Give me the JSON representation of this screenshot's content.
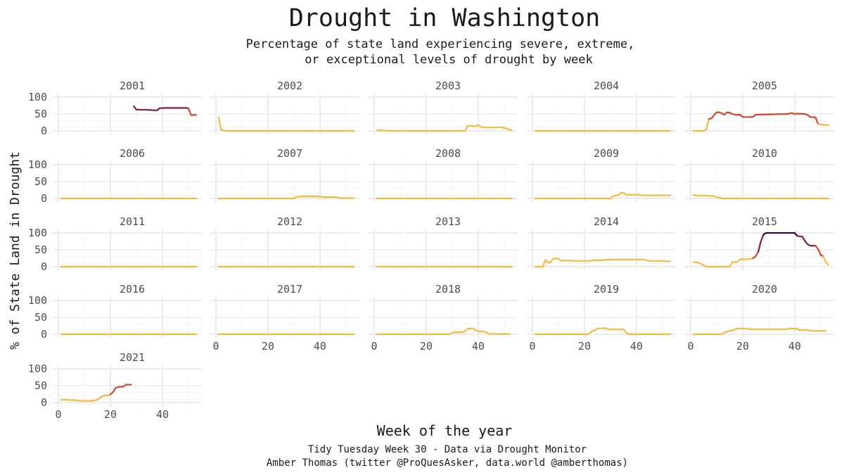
{
  "title": "Drought in Washington",
  "subtitle_line1": "Percentage of state land experiencing severe, extreme,",
  "subtitle_line2": "or exceptional levels of drought by week",
  "caption_line1": "Tidy Tuesday Week 30 - Data via Drought Monitor",
  "caption_line2": "Amber Thomas (twitter @ProQuesAsker, data.world @amberthomas)",
  "colors": {
    "low": "#f5b942",
    "mid": "#d6452e",
    "high": "#7a1e3c",
    "max": "#2a0b3a",
    "grid": "#ebebeb",
    "text": "#4d4d4d"
  },
  "chart_data": {
    "type": "line",
    "xlabel": "Week of the year",
    "ylabel": "% of State Land in Drought",
    "xlim": [
      0,
      53
    ],
    "ylim": [
      0,
      100
    ],
    "x_ticks": [
      0,
      20,
      40
    ],
    "y_ticks": [
      0,
      50,
      100
    ],
    "layout": "facet_wrap by year, 5 columns",
    "color_scale": "sequential: yellow (low) to red to dark purple (high)",
    "panels": [
      {
        "year": "2001",
        "points": [
          [
            29,
            73
          ],
          [
            30,
            63
          ],
          [
            31,
            63
          ],
          [
            35,
            62
          ],
          [
            37,
            61
          ],
          [
            38,
            61
          ],
          [
            39,
            67
          ],
          [
            41,
            68
          ],
          [
            46,
            68
          ],
          [
            49,
            68
          ],
          [
            50,
            67
          ],
          [
            51,
            47
          ],
          [
            53,
            47
          ]
        ]
      },
      {
        "year": "2002",
        "points": [
          [
            1,
            40
          ],
          [
            2,
            3
          ],
          [
            3,
            1
          ],
          [
            6,
            0
          ],
          [
            53,
            0
          ]
        ]
      },
      {
        "year": "2003",
        "points": [
          [
            1,
            1
          ],
          [
            2,
            2
          ],
          [
            4,
            1
          ],
          [
            6,
            0
          ],
          [
            35,
            0
          ],
          [
            36,
            15
          ],
          [
            37,
            15
          ],
          [
            38,
            14
          ],
          [
            39,
            14
          ],
          [
            40,
            17
          ],
          [
            41,
            12
          ],
          [
            42,
            10
          ],
          [
            46,
            10
          ],
          [
            49,
            11
          ],
          [
            51,
            6
          ],
          [
            53,
            1
          ]
        ]
      },
      {
        "year": "2004",
        "points": [
          [
            1,
            0
          ],
          [
            53,
            0
          ]
        ]
      },
      {
        "year": "2005",
        "points": [
          [
            1,
            0
          ],
          [
            5,
            0
          ],
          [
            6,
            5
          ],
          [
            7,
            35
          ],
          [
            8,
            37
          ],
          [
            9,
            47
          ],
          [
            10,
            55
          ],
          [
            11,
            55
          ],
          [
            12,
            52
          ],
          [
            13,
            48
          ],
          [
            14,
            55
          ],
          [
            15,
            54
          ],
          [
            16,
            50
          ],
          [
            17,
            48
          ],
          [
            19,
            48
          ],
          [
            20,
            41
          ],
          [
            23,
            41
          ],
          [
            24,
            42
          ],
          [
            25,
            48
          ],
          [
            37,
            50
          ],
          [
            39,
            53
          ],
          [
            40,
            50
          ],
          [
            41,
            51
          ],
          [
            44,
            50
          ],
          [
            45,
            47
          ],
          [
            46,
            41
          ],
          [
            48,
            40
          ],
          [
            49,
            20
          ],
          [
            53,
            17
          ]
        ]
      },
      {
        "year": "2006",
        "points": [
          [
            1,
            0
          ],
          [
            53,
            0
          ]
        ]
      },
      {
        "year": "2007",
        "points": [
          [
            1,
            0
          ],
          [
            30,
            0
          ],
          [
            31,
            5
          ],
          [
            33,
            6
          ],
          [
            40,
            6
          ],
          [
            41,
            4
          ],
          [
            46,
            4
          ],
          [
            48,
            1
          ],
          [
            53,
            1
          ]
        ]
      },
      {
        "year": "2008",
        "points": [
          [
            1,
            0
          ],
          [
            53,
            0
          ]
        ]
      },
      {
        "year": "2009",
        "points": [
          [
            1,
            0
          ],
          [
            30,
            0
          ],
          [
            31,
            7
          ],
          [
            33,
            10
          ],
          [
            34,
            17
          ],
          [
            35,
            16
          ],
          [
            36,
            11
          ],
          [
            41,
            11
          ],
          [
            42,
            9
          ],
          [
            53,
            9
          ]
        ]
      },
      {
        "year": "2010",
        "points": [
          [
            1,
            10
          ],
          [
            2,
            9
          ],
          [
            5,
            8
          ],
          [
            9,
            7
          ],
          [
            10,
            4
          ],
          [
            11,
            3
          ],
          [
            12,
            0
          ],
          [
            53,
            0
          ]
        ]
      },
      {
        "year": "2011",
        "points": [
          [
            1,
            0
          ],
          [
            53,
            0
          ]
        ]
      },
      {
        "year": "2012",
        "points": [
          [
            1,
            0
          ],
          [
            53,
            0
          ]
        ]
      },
      {
        "year": "2013",
        "points": [
          [
            1,
            0
          ],
          [
            53,
            0
          ]
        ]
      },
      {
        "year": "2014",
        "points": [
          [
            1,
            0
          ],
          [
            4,
            0
          ],
          [
            5,
            20
          ],
          [
            6,
            13
          ],
          [
            7,
            13
          ],
          [
            8,
            24
          ],
          [
            10,
            24
          ],
          [
            11,
            18
          ],
          [
            15,
            18
          ],
          [
            16,
            17
          ],
          [
            22,
            17
          ],
          [
            23,
            19
          ],
          [
            27,
            19
          ],
          [
            28,
            21
          ],
          [
            43,
            21
          ],
          [
            44,
            19
          ],
          [
            45,
            17
          ],
          [
            50,
            17
          ],
          [
            51,
            16
          ],
          [
            53,
            16
          ]
        ]
      },
      {
        "year": "2015",
        "points": [
          [
            1,
            14
          ],
          [
            3,
            12
          ],
          [
            4,
            8
          ],
          [
            6,
            0
          ],
          [
            15,
            0
          ],
          [
            16,
            14
          ],
          [
            18,
            14
          ],
          [
            19,
            22
          ],
          [
            22,
            22
          ],
          [
            24,
            25
          ],
          [
            25,
            31
          ],
          [
            26,
            45
          ],
          [
            27,
            75
          ],
          [
            28,
            95
          ],
          [
            29,
            100
          ],
          [
            40,
            100
          ],
          [
            41,
            91
          ],
          [
            43,
            89
          ],
          [
            44,
            75
          ],
          [
            45,
            66
          ],
          [
            46,
            62
          ],
          [
            48,
            62
          ],
          [
            49,
            52
          ],
          [
            50,
            35
          ],
          [
            51,
            30
          ],
          [
            52,
            14
          ],
          [
            53,
            5
          ]
        ]
      },
      {
        "year": "2016",
        "points": [
          [
            1,
            0
          ],
          [
            53,
            0
          ]
        ]
      },
      {
        "year": "2017",
        "points": [
          [
            1,
            0
          ],
          [
            53,
            0
          ]
        ]
      },
      {
        "year": "2018",
        "points": [
          [
            1,
            0
          ],
          [
            29,
            0
          ],
          [
            30,
            5
          ],
          [
            31,
            6
          ],
          [
            34,
            6
          ],
          [
            35,
            9
          ],
          [
            36,
            16
          ],
          [
            38,
            17
          ],
          [
            39,
            12
          ],
          [
            40,
            9
          ],
          [
            42,
            8
          ],
          [
            43,
            6
          ],
          [
            44,
            1
          ],
          [
            51,
            1
          ],
          [
            52,
            0
          ]
        ]
      },
      {
        "year": "2019",
        "points": [
          [
            1,
            0
          ],
          [
            21,
            0
          ],
          [
            22,
            2
          ],
          [
            23,
            10
          ],
          [
            24,
            12
          ],
          [
            25,
            17
          ],
          [
            28,
            18
          ],
          [
            29,
            15
          ],
          [
            35,
            15
          ],
          [
            36,
            5
          ],
          [
            37,
            0
          ],
          [
            53,
            0
          ]
        ]
      },
      {
        "year": "2020",
        "points": [
          [
            1,
            0
          ],
          [
            12,
            0
          ],
          [
            13,
            5
          ],
          [
            15,
            10
          ],
          [
            17,
            14
          ],
          [
            18,
            17
          ],
          [
            20,
            17
          ],
          [
            22,
            16
          ],
          [
            23,
            15
          ],
          [
            37,
            15
          ],
          [
            38,
            17
          ],
          [
            41,
            16
          ],
          [
            42,
            13
          ],
          [
            45,
            13
          ],
          [
            46,
            10
          ],
          [
            52,
            10
          ]
        ]
      },
      {
        "year": "2021",
        "points": [
          [
            1,
            8
          ],
          [
            3,
            8
          ],
          [
            6,
            7
          ],
          [
            8,
            5
          ],
          [
            13,
            5
          ],
          [
            15,
            8
          ],
          [
            16,
            14
          ],
          [
            17,
            19
          ],
          [
            18,
            21
          ],
          [
            19,
            21
          ],
          [
            20,
            24
          ],
          [
            21,
            31
          ],
          [
            22,
            43
          ],
          [
            23,
            46
          ],
          [
            25,
            47
          ],
          [
            26,
            53
          ],
          [
            28,
            53
          ]
        ]
      }
    ]
  }
}
